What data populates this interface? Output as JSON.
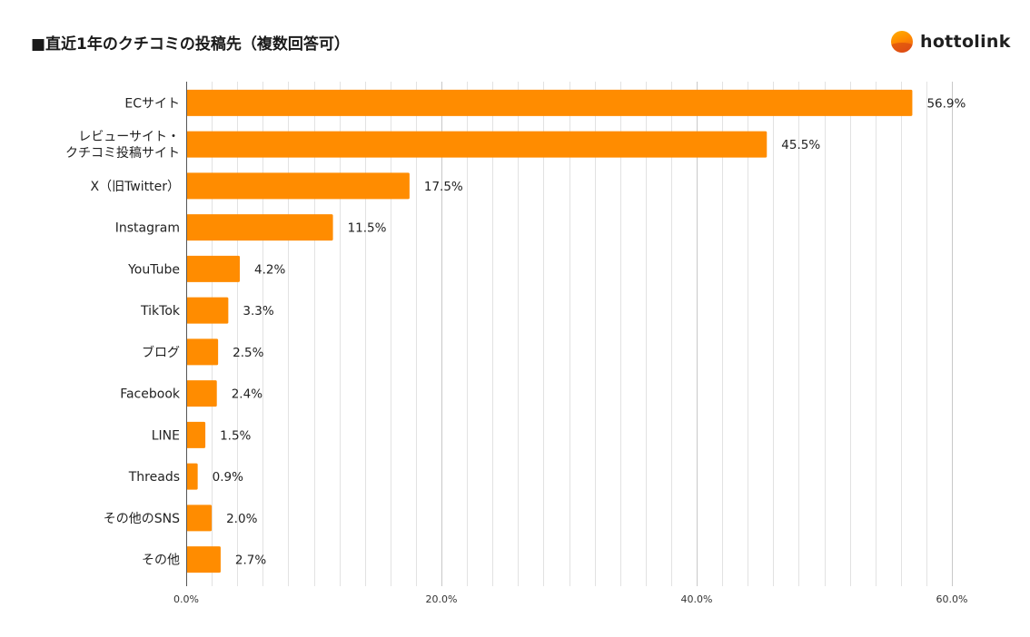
{
  "title": "■直近1年のクチコミの投稿先（複数回答可）",
  "logo": {
    "text": "hottolink"
  },
  "colors": {
    "bar": "#ff8c00",
    "grid": "#e2e2e2",
    "axis": "#555555"
  },
  "chart_data": {
    "type": "bar",
    "orientation": "horizontal",
    "title": "■直近1年のクチコミの投稿先（複数回答可）",
    "categories": [
      [
        "ECサイト"
      ],
      [
        "レビューサイト・",
        "クチコミ投稿サイト"
      ],
      [
        "X（旧Twitter）"
      ],
      [
        "Instagram"
      ],
      [
        "YouTube"
      ],
      [
        "TikTok"
      ],
      [
        "ブログ"
      ],
      [
        "Facebook"
      ],
      [
        "LINE"
      ],
      [
        "Threads"
      ],
      [
        "その他のSNS"
      ],
      [
        "その他"
      ]
    ],
    "values": [
      56.9,
      45.5,
      17.5,
      11.5,
      4.2,
      3.3,
      2.5,
      2.4,
      1.5,
      0.9,
      2.0,
      2.7
    ],
    "value_labels": [
      "56.9%",
      "45.5%",
      "17.5%",
      "11.5%",
      "4.2%",
      "3.3%",
      "2.5%",
      "2.4%",
      "1.5%",
      "0.9%",
      "2.0%",
      "2.7%"
    ],
    "xlim": [
      0,
      60
    ],
    "xticks": [
      0,
      20,
      40,
      60
    ],
    "xtick_labels": [
      "0.0%",
      "20.0%",
      "40.0%",
      "60.0%"
    ],
    "minor_grid_step": 2,
    "grid": true,
    "legend": "none",
    "xlabel": "",
    "ylabel": ""
  }
}
